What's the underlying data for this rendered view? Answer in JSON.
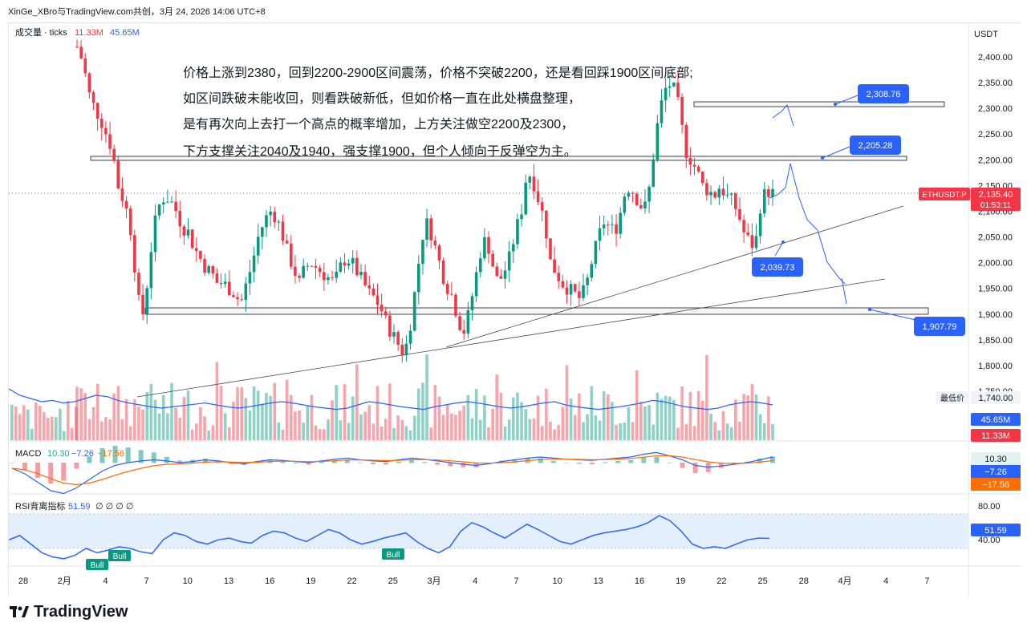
{
  "header": {
    "title": "XinGe_XBro与TradingView.com共创，3月 24, 2026 14:06 UTC+8"
  },
  "volume_legend": {
    "label": "成交量 · ticks",
    "v1": "11.33M",
    "v2": "45.65M",
    "v1_color": "#f23645",
    "v2_color": "#2962ff"
  },
  "annotation_lines": [
    "价格上涨到2380，回到2200-2900区间震荡，价格不突破2200，还是看回踩1900区间底部;",
    "如区间跌破未能收回，则看跌破新低，但如价格一直在此处横盘整理，",
    "是有再次向上去打一个高点的概率增加，上方关注做空2200及2300，",
    "下方支撑关注2040及1940，强支撑1900，但个人倾向于反弹空为主。"
  ],
  "price_axis": {
    "currency": "USDT",
    "ticks": [
      "2,400.00",
      "2,350.00",
      "2,300.00",
      "2,250.00",
      "2,200.00",
      "2,150.00",
      "2,100.00",
      "2,050.00",
      "2,000.00",
      "1,950.00",
      "1,900.00",
      "1,850.00",
      "1,800.00",
      "1,750.00"
    ]
  },
  "symbol_tag": {
    "symbol": "ETHUSDT.P",
    "price": "2,135.40",
    "countdown": "01:53:11"
  },
  "low_price": {
    "label": "最低价",
    "value": "1,740.00"
  },
  "volume_tags": {
    "v2": "45.65M",
    "v1": "11.33M"
  },
  "callouts": [
    "2,308.76",
    "2,205.28",
    "2,039.73",
    "1,907.79"
  ],
  "macd": {
    "label": "MACD",
    "v1": "10.30",
    "v2": "−7.26",
    "v3": "−17.56",
    "tags": [
      "10.30",
      "−7.26",
      "−17.56"
    ]
  },
  "rsi": {
    "label": "RSI背离指标",
    "value": "51.59",
    "zeros": "∅ ∅ ∅ ∅",
    "ticks": [
      "80.00",
      "40.00"
    ],
    "tag": "51.59",
    "bull": [
      "Bull",
      "Bull",
      "Bull"
    ]
  },
  "time_axis": [
    "28",
    "2月",
    "4",
    "7",
    "10",
    "13",
    "16",
    "19",
    "22",
    "25",
    "3月",
    "4",
    "7",
    "10",
    "13",
    "16",
    "19",
    "22",
    "25",
    "28",
    "4月",
    "4",
    "7"
  ],
  "brand": {
    "name": "TradingView"
  },
  "colors": {
    "up": "#089981",
    "down": "#f23645",
    "blue": "#2962ff",
    "callout": "#2962ff"
  },
  "chart_data": {
    "type": "candlestick",
    "symbol": "ETHUSDT.P",
    "last_price": 2135.4,
    "y_range": [
      1740,
      2420
    ],
    "horizontal_levels": [
      2308.76,
      2205.28,
      1907.79
    ],
    "support_point": 2039.73,
    "path_close": [
      2420,
      2390,
      2330,
      2300,
      2280,
      2250,
      2220,
      2150,
      2120,
      2080,
      1980,
      1880,
      1960,
      2060,
      2110,
      2130,
      2120,
      2100,
      2070,
      2060,
      2030,
      2010,
      1990,
      1980,
      1960,
      1960,
      1950,
      1940,
      1920,
      1960,
      2000,
      2050,
      2080,
      2100,
      2090,
      2060,
      2020,
      1990,
      1960,
      1990,
      2000,
      1990,
      1980,
      1970,
      1960,
      1990,
      2010,
      2000,
      1980,
      1960,
      1940,
      1930,
      1910,
      1880,
      1860,
      1840,
      1820,
      1880,
      1960,
      2050,
      2080,
      2040,
      2000,
      1960,
      1940,
      1900,
      1860,
      1900,
      1960,
      2020,
      2050,
      2000,
      1960,
      1980,
      2010,
      2060,
      2100,
      2180,
      2160,
      2120,
      2080,
      2000,
      1980,
      1960,
      1950,
      1940,
      1930,
      1950,
      2000,
      2040,
      2080,
      2070,
      2060,
      2100,
      2150,
      2140,
      2120,
      2100,
      2150,
      2250,
      2310,
      2350,
      2340,
      2300,
      2220,
      2200,
      2180,
      2150,
      2140,
      2130,
      2150,
      2130,
      2120,
      2100,
      2060,
      2040,
      2030,
      2120,
      2140,
      2135
    ],
    "vol_ma": [
      80,
      70,
      65,
      60,
      62,
      58,
      60,
      65,
      70,
      68,
      62,
      58,
      55,
      52,
      50,
      52,
      54,
      56,
      58,
      55,
      52,
      50,
      52,
      55,
      58,
      60,
      58,
      55,
      52,
      50,
      48,
      50,
      55,
      60,
      58,
      55,
      52,
      50,
      48,
      52,
      55,
      58,
      60,
      58,
      55,
      52,
      50,
      52,
      55,
      58,
      60,
      55,
      52,
      50,
      48,
      50,
      52,
      55,
      58,
      62,
      60,
      56,
      52,
      50,
      48,
      50,
      55,
      58,
      60,
      58,
      55
    ],
    "macd_line": [
      -10,
      -20,
      -35,
      -50,
      -55,
      -45,
      -30,
      -15,
      -5,
      0,
      3,
      5,
      3,
      0,
      2,
      5,
      3,
      0,
      -2,
      2,
      5,
      4,
      2,
      0,
      3,
      6,
      8,
      5,
      3,
      2,
      5,
      8,
      6,
      3,
      0,
      -3,
      -5,
      -2,
      2,
      5,
      8,
      10,
      8,
      6,
      5,
      4,
      6,
      8,
      10,
      15,
      18,
      12,
      5,
      -5,
      -8,
      -6,
      -3,
      0,
      5,
      10
    ],
    "rsi": [
      50,
      55,
      45,
      35,
      30,
      28,
      32,
      40,
      35,
      38,
      42,
      40,
      36,
      34,
      50,
      58,
      55,
      48,
      45,
      50,
      52,
      48,
      46,
      55,
      60,
      58,
      52,
      48,
      55,
      62,
      58,
      50,
      45,
      48,
      52,
      55,
      58,
      48,
      40,
      35,
      42,
      60,
      70,
      65,
      58,
      52,
      60,
      68,
      62,
      55,
      48,
      45,
      50,
      55,
      58,
      60,
      62,
      65,
      70,
      78,
      72,
      60,
      45,
      40,
      42,
      40,
      45,
      50,
      52,
      51.59
    ]
  }
}
